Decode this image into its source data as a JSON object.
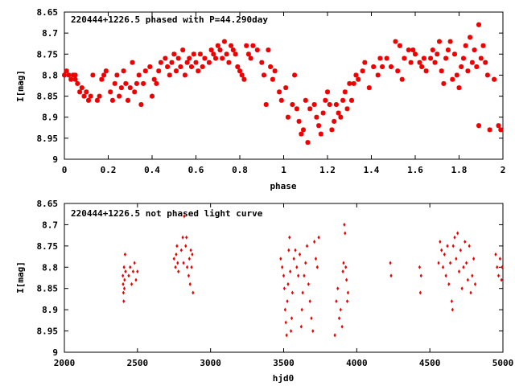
{
  "colors": {
    "marker": "#ee0000",
    "axis": "#000000",
    "background": "#ffffff"
  },
  "chart_data": [
    {
      "type": "scatter",
      "title": "220444+1226.5 phased with P=44.290day",
      "xlabel": "phase",
      "ylabel": "I[mag]",
      "xlim": [
        0,
        2
      ],
      "ylim": [
        9,
        8.65
      ],
      "y_reversed": true,
      "xticks": [
        "0",
        "0.2",
        "0.4",
        "0.6",
        "0.8",
        "1",
        "1.2",
        "1.4",
        "1.6",
        "1.8",
        "2"
      ],
      "yticks": [
        "8.65",
        "8.7",
        "8.75",
        "8.8",
        "8.85",
        "8.9",
        "8.95",
        "9"
      ],
      "grid": false,
      "marker": "star",
      "points": [
        [
          0.0,
          8.8
        ],
        [
          0.01,
          8.79
        ],
        [
          0.02,
          8.8
        ],
        [
          0.03,
          8.81
        ],
        [
          0.04,
          8.8
        ],
        [
          0.05,
          8.81
        ],
        [
          0.05,
          8.8
        ],
        [
          0.06,
          8.82
        ],
        [
          0.07,
          8.84
        ],
        [
          0.08,
          8.83
        ],
        [
          0.09,
          8.85
        ],
        [
          0.1,
          8.84
        ],
        [
          0.11,
          8.86
        ],
        [
          0.12,
          8.85
        ],
        [
          0.13,
          8.8
        ],
        [
          0.15,
          8.86
        ],
        [
          0.16,
          8.85
        ],
        [
          0.17,
          8.81
        ],
        [
          0.18,
          8.8
        ],
        [
          0.19,
          8.79
        ],
        [
          0.21,
          8.84
        ],
        [
          0.22,
          8.86
        ],
        [
          0.23,
          8.82
        ],
        [
          0.24,
          8.8
        ],
        [
          0.25,
          8.85
        ],
        [
          0.26,
          8.83
        ],
        [
          0.27,
          8.79
        ],
        [
          0.28,
          8.82
        ],
        [
          0.29,
          8.86
        ],
        [
          0.3,
          8.83
        ],
        [
          0.31,
          8.77
        ],
        [
          0.32,
          8.84
        ],
        [
          0.33,
          8.82
        ],
        [
          0.34,
          8.8
        ],
        [
          0.35,
          8.87
        ],
        [
          0.36,
          8.82
        ],
        [
          0.37,
          8.79
        ],
        [
          0.39,
          8.78
        ],
        [
          0.4,
          8.85
        ],
        [
          0.41,
          8.81
        ],
        [
          0.42,
          8.82
        ],
        [
          0.43,
          8.79
        ],
        [
          0.44,
          8.77
        ],
        [
          0.46,
          8.76
        ],
        [
          0.47,
          8.78
        ],
        [
          0.48,
          8.8
        ],
        [
          0.49,
          8.77
        ],
        [
          0.5,
          8.75
        ],
        [
          0.51,
          8.79
        ],
        [
          0.52,
          8.76
        ],
        [
          0.53,
          8.78
        ],
        [
          0.54,
          8.74
        ],
        [
          0.55,
          8.8
        ],
        [
          0.56,
          8.77
        ],
        [
          0.57,
          8.76
        ],
        [
          0.58,
          8.78
        ],
        [
          0.59,
          8.75
        ],
        [
          0.6,
          8.77
        ],
        [
          0.61,
          8.79
        ],
        [
          0.62,
          8.75
        ],
        [
          0.63,
          8.78
        ],
        [
          0.64,
          8.76
        ],
        [
          0.66,
          8.77
        ],
        [
          0.67,
          8.74
        ],
        [
          0.68,
          8.75
        ],
        [
          0.69,
          8.76
        ],
        [
          0.7,
          8.73
        ],
        [
          0.71,
          8.74
        ],
        [
          0.72,
          8.76
        ],
        [
          0.73,
          8.72
        ],
        [
          0.74,
          8.75
        ],
        [
          0.75,
          8.77
        ],
        [
          0.76,
          8.73
        ],
        [
          0.77,
          8.74
        ],
        [
          0.78,
          8.75
        ],
        [
          0.79,
          8.78
        ],
        [
          0.8,
          8.79
        ],
        [
          0.81,
          8.8
        ],
        [
          0.82,
          8.81
        ],
        [
          0.83,
          8.73
        ],
        [
          0.84,
          8.75
        ],
        [
          0.85,
          8.76
        ],
        [
          0.86,
          8.73
        ],
        [
          0.88,
          8.74
        ],
        [
          0.9,
          8.77
        ],
        [
          0.91,
          8.8
        ],
        [
          0.92,
          8.87
        ],
        [
          0.93,
          8.74
        ],
        [
          0.94,
          8.78
        ],
        [
          0.95,
          8.81
        ],
        [
          0.96,
          8.79
        ],
        [
          0.98,
          8.84
        ],
        [
          0.99,
          8.86
        ],
        [
          1.01,
          8.83
        ],
        [
          1.02,
          8.9
        ],
        [
          1.04,
          8.87
        ],
        [
          1.05,
          8.8
        ],
        [
          1.06,
          8.88
        ],
        [
          1.07,
          8.91
        ],
        [
          1.08,
          8.94
        ],
        [
          1.09,
          8.93
        ],
        [
          1.1,
          8.86
        ],
        [
          1.11,
          8.96
        ],
        [
          1.12,
          8.88
        ],
        [
          1.14,
          8.87
        ],
        [
          1.15,
          8.9
        ],
        [
          1.16,
          8.92
        ],
        [
          1.17,
          8.94
        ],
        [
          1.18,
          8.89
        ],
        [
          1.19,
          8.86
        ],
        [
          1.2,
          8.84
        ],
        [
          1.21,
          8.87
        ],
        [
          1.22,
          8.93
        ],
        [
          1.23,
          8.91
        ],
        [
          1.24,
          8.87
        ],
        [
          1.25,
          8.89
        ],
        [
          1.26,
          8.9
        ],
        [
          1.27,
          8.86
        ],
        [
          1.28,
          8.84
        ],
        [
          1.29,
          8.88
        ],
        [
          1.3,
          8.82
        ],
        [
          1.31,
          8.86
        ],
        [
          1.32,
          8.82
        ],
        [
          1.33,
          8.8
        ],
        [
          1.34,
          8.81
        ],
        [
          1.36,
          8.79
        ],
        [
          1.37,
          8.77
        ],
        [
          1.39,
          8.83
        ],
        [
          1.41,
          8.78
        ],
        [
          1.43,
          8.8
        ],
        [
          1.44,
          8.76
        ],
        [
          1.45,
          8.78
        ],
        [
          1.47,
          8.76
        ],
        [
          1.49,
          8.78
        ],
        [
          1.51,
          8.72
        ],
        [
          1.52,
          8.79
        ],
        [
          1.53,
          8.73
        ],
        [
          1.54,
          8.81
        ],
        [
          1.55,
          8.76
        ],
        [
          1.57,
          8.74
        ],
        [
          1.58,
          8.77
        ],
        [
          1.59,
          8.74
        ],
        [
          1.6,
          8.75
        ],
        [
          1.62,
          8.77
        ],
        [
          1.63,
          8.78
        ],
        [
          1.64,
          8.76
        ],
        [
          1.65,
          8.79
        ],
        [
          1.67,
          8.76
        ],
        [
          1.68,
          8.74
        ],
        [
          1.69,
          8.77
        ],
        [
          1.7,
          8.75
        ],
        [
          1.71,
          8.72
        ],
        [
          1.72,
          8.79
        ],
        [
          1.73,
          8.82
        ],
        [
          1.74,
          8.76
        ],
        [
          1.75,
          8.74
        ],
        [
          1.76,
          8.72
        ],
        [
          1.77,
          8.81
        ],
        [
          1.78,
          8.75
        ],
        [
          1.79,
          8.8
        ],
        [
          1.8,
          8.83
        ],
        [
          1.81,
          8.78
        ],
        [
          1.82,
          8.76
        ],
        [
          1.83,
          8.73
        ],
        [
          1.84,
          8.79
        ],
        [
          1.85,
          8.71
        ],
        [
          1.86,
          8.77
        ],
        [
          1.87,
          8.74
        ],
        [
          1.88,
          8.78
        ],
        [
          1.89,
          8.68
        ],
        [
          1.89,
          8.92
        ],
        [
          1.9,
          8.76
        ],
        [
          1.91,
          8.73
        ],
        [
          1.92,
          8.77
        ],
        [
          1.93,
          8.8
        ],
        [
          1.94,
          8.93
        ],
        [
          1.96,
          8.81
        ],
        [
          1.98,
          8.92
        ],
        [
          1.99,
          8.93
        ]
      ]
    },
    {
      "type": "scatter",
      "title": "220444+1226.5 not phased light curve",
      "xlabel": "hjd0",
      "ylabel": "I[mag]",
      "xlim": [
        2000,
        5000
      ],
      "ylim": [
        9,
        8.65
      ],
      "y_reversed": true,
      "xticks": [
        "2000",
        "2500",
        "3000",
        "3500",
        "4000",
        "4500",
        "5000"
      ],
      "yticks": [
        "8.65",
        "8.7",
        "8.75",
        "8.8",
        "8.85",
        "8.9",
        "8.95",
        "9"
      ],
      "grid": false,
      "marker": "diamond",
      "points": [
        [
          2400,
          8.82
        ],
        [
          2402,
          8.84
        ],
        [
          2404,
          8.86
        ],
        [
          2406,
          8.88
        ],
        [
          2408,
          8.8
        ],
        [
          2410,
          8.85
        ],
        [
          2412,
          8.83
        ],
        [
          2415,
          8.77
        ],
        [
          2418,
          8.81
        ],
        [
          2440,
          8.82
        ],
        [
          2450,
          8.8
        ],
        [
          2460,
          8.84
        ],
        [
          2470,
          8.81
        ],
        [
          2480,
          8.79
        ],
        [
          2490,
          8.83
        ],
        [
          2500,
          8.81
        ],
        [
          2750,
          8.78
        ],
        [
          2760,
          8.8
        ],
        [
          2765,
          8.77
        ],
        [
          2770,
          8.75
        ],
        [
          2775,
          8.79
        ],
        [
          2780,
          8.81
        ],
        [
          2800,
          8.76
        ],
        [
          2810,
          8.73
        ],
        [
          2815,
          8.79
        ],
        [
          2820,
          8.68
        ],
        [
          2830,
          8.75
        ],
        [
          2835,
          8.73
        ],
        [
          2840,
          8.8
        ],
        [
          2850,
          8.82
        ],
        [
          2855,
          8.78
        ],
        [
          2860,
          8.84
        ],
        [
          2865,
          8.76
        ],
        [
          2870,
          8.8
        ],
        [
          2875,
          8.77
        ],
        [
          2880,
          8.86
        ],
        [
          3480,
          8.78
        ],
        [
          3490,
          8.8
        ],
        [
          3500,
          8.82
        ],
        [
          3505,
          8.85
        ],
        [
          3510,
          8.9
        ],
        [
          3515,
          8.93
        ],
        [
          3520,
          8.96
        ],
        [
          3525,
          8.88
        ],
        [
          3530,
          8.84
        ],
        [
          3535,
          8.76
        ],
        [
          3540,
          8.73
        ],
        [
          3545,
          8.81
        ],
        [
          3550,
          8.95
        ],
        [
          3555,
          8.92
        ],
        [
          3560,
          8.86
        ],
        [
          3570,
          8.78
        ],
        [
          3580,
          8.76
        ],
        [
          3590,
          8.8
        ],
        [
          3600,
          8.82
        ],
        [
          3610,
          8.77
        ],
        [
          3620,
          8.94
        ],
        [
          3625,
          8.9
        ],
        [
          3630,
          8.86
        ],
        [
          3640,
          8.82
        ],
        [
          3650,
          8.79
        ],
        [
          3660,
          8.75
        ],
        [
          3670,
          8.84
        ],
        [
          3680,
          8.88
        ],
        [
          3690,
          8.92
        ],
        [
          3700,
          8.95
        ],
        [
          3710,
          8.74
        ],
        [
          3720,
          8.78
        ],
        [
          3730,
          8.8
        ],
        [
          3740,
          8.73
        ],
        [
          3850,
          8.96
        ],
        [
          3860,
          8.88
        ],
        [
          3870,
          8.85
        ],
        [
          3880,
          8.92
        ],
        [
          3890,
          8.9
        ],
        [
          3900,
          8.94
        ],
        [
          3905,
          8.81
        ],
        [
          3910,
          8.79
        ],
        [
          3915,
          8.7
        ],
        [
          3920,
          8.72
        ],
        [
          3925,
          8.8
        ],
        [
          3930,
          8.83
        ],
        [
          3935,
          8.88
        ],
        [
          3940,
          8.86
        ],
        [
          4230,
          8.79
        ],
        [
          4235,
          8.82
        ],
        [
          4430,
          8.8
        ],
        [
          4435,
          8.86
        ],
        [
          4440,
          8.82
        ],
        [
          4560,
          8.79
        ],
        [
          4570,
          8.74
        ],
        [
          4580,
          8.76
        ],
        [
          4590,
          8.8
        ],
        [
          4600,
          8.77
        ],
        [
          4610,
          8.82
        ],
        [
          4620,
          8.75
        ],
        [
          4630,
          8.84
        ],
        [
          4640,
          8.79
        ],
        [
          4650,
          8.88
        ],
        [
          4655,
          8.9
        ],
        [
          4660,
          8.75
        ],
        [
          4670,
          8.73
        ],
        [
          4680,
          8.78
        ],
        [
          4690,
          8.72
        ],
        [
          4700,
          8.81
        ],
        [
          4710,
          8.76
        ],
        [
          4720,
          8.85
        ],
        [
          4730,
          8.8
        ],
        [
          4740,
          8.74
        ],
        [
          4750,
          8.79
        ],
        [
          4760,
          8.83
        ],
        [
          4770,
          8.75
        ],
        [
          4780,
          8.86
        ],
        [
          4790,
          8.82
        ],
        [
          4800,
          8.78
        ],
        [
          4810,
          8.84
        ],
        [
          4950,
          8.77
        ],
        [
          4960,
          8.8
        ],
        [
          4970,
          8.82
        ],
        [
          4980,
          8.78
        ],
        [
          4990,
          8.83
        ],
        [
          4995,
          8.8
        ]
      ]
    }
  ]
}
